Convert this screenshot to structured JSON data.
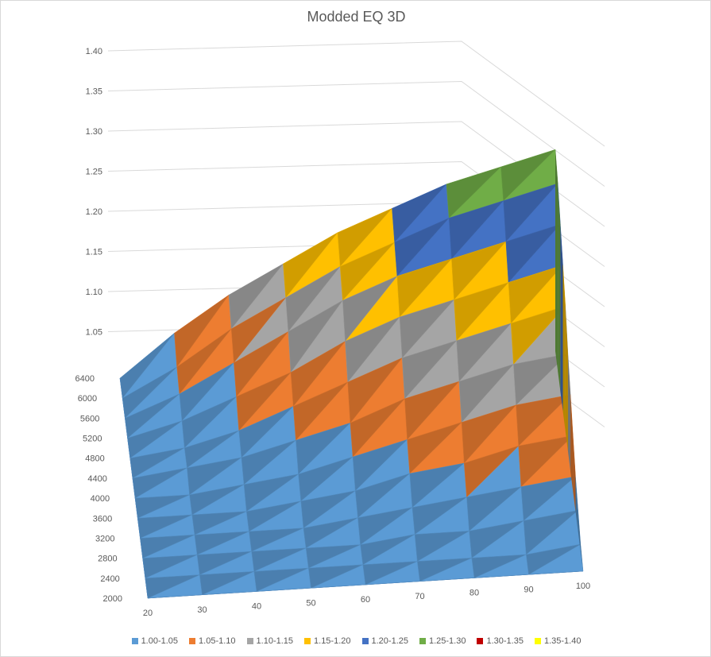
{
  "chart_data": {
    "type": "surface3d",
    "title": "Modded EQ 3D",
    "x_categories": [
      20,
      30,
      40,
      50,
      60,
      70,
      80,
      90,
      100
    ],
    "depth_categories": [
      2000,
      2400,
      2800,
      3200,
      3600,
      4000,
      4400,
      4800,
      5200,
      5600,
      6000,
      6400
    ],
    "depth_tick_labels": [
      "2000",
      "2400",
      "2800",
      "3200",
      "3600",
      "4000",
      "4400",
      "4800",
      "5200",
      "5600",
      "6000",
      "6400"
    ],
    "z_ticks": [
      "1.40",
      "1.35",
      "1.30",
      "1.25",
      "1.20",
      "1.15",
      "1.10",
      "1.05"
    ],
    "zlim": [
      1.0,
      1.4
    ],
    "legend": [
      {
        "label": "1.00-1.05",
        "color": "#5b9bd5"
      },
      {
        "label": "1.05-1.10",
        "color": "#ed7d31"
      },
      {
        "label": "1.10-1.15",
        "color": "#a5a5a5"
      },
      {
        "label": "1.15-1.20",
        "color": "#ffc000"
      },
      {
        "label": "1.20-1.25",
        "color": "#4472c4"
      },
      {
        "label": "1.25-1.30",
        "color": "#70ad47"
      },
      {
        "label": "1.30-1.35",
        "color": "#c00000"
      },
      {
        "label": "1.35-1.40",
        "color": "#ffff00"
      }
    ],
    "z_surface_note": "values rise with x and with depth; max about 1.29 at x=100, depth=6400",
    "z_values": [
      [
        1.0,
        1.0,
        1.0,
        1.0,
        1.0,
        1.0,
        1.0,
        1.0,
        1.0,
        1.0,
        1.0,
        1.0
      ],
      [
        1.0,
        1.0,
        1.0,
        1.0,
        1.0,
        1.0,
        1.01,
        1.01,
        1.02,
        1.03,
        1.04,
        1.06
      ],
      [
        1.0,
        1.0,
        1.0,
        1.0,
        1.0,
        1.01,
        1.02,
        1.03,
        1.05,
        1.07,
        1.09,
        1.11
      ],
      [
        1.0,
        1.0,
        1.0,
        1.0,
        1.01,
        1.02,
        1.04,
        1.06,
        1.08,
        1.11,
        1.13,
        1.15
      ],
      [
        1.0,
        1.0,
        1.0,
        1.01,
        1.02,
        1.04,
        1.06,
        1.09,
        1.12,
        1.15,
        1.17,
        1.19
      ],
      [
        1.0,
        1.0,
        1.01,
        1.02,
        1.04,
        1.06,
        1.09,
        1.12,
        1.15,
        1.18,
        1.2,
        1.22
      ],
      [
        1.0,
        1.0,
        1.01,
        1.03,
        1.05,
        1.08,
        1.11,
        1.14,
        1.17,
        1.2,
        1.23,
        1.25
      ],
      [
        1.0,
        1.0,
        1.02,
        1.04,
        1.07,
        1.1,
        1.13,
        1.16,
        1.19,
        1.22,
        1.25,
        1.27
      ],
      [
        1.0,
        1.01,
        1.03,
        1.05,
        1.08,
        1.11,
        1.14,
        1.18,
        1.21,
        1.24,
        1.27,
        1.29
      ]
    ]
  }
}
